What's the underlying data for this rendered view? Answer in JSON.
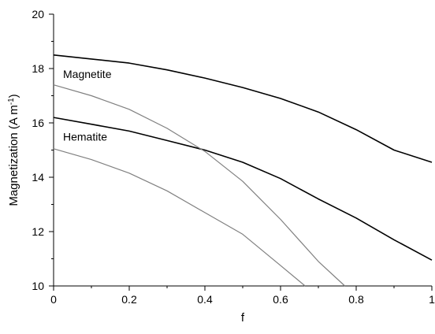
{
  "chart_data": {
    "type": "line",
    "title": "",
    "xlabel": "f",
    "ylabel": "Magnetization (A m",
    "ylabel_superscript": "-1",
    "ylabel_close": ")",
    "xlim": [
      0,
      1
    ],
    "ylim": [
      10,
      20
    ],
    "x_ticks": [
      0,
      0.2,
      0.4,
      0.6,
      0.8,
      1
    ],
    "x_tick_labels": [
      "0",
      "0.2",
      "0.4",
      "0.6",
      "0.8",
      "1"
    ],
    "y_ticks": [
      10,
      12,
      14,
      16,
      18,
      20
    ],
    "y_tick_labels": [
      "10",
      "12",
      "14",
      "16",
      "18",
      "20"
    ],
    "grid": false,
    "legend": "none",
    "annotations": [
      {
        "text": "Magnetite",
        "x": 0.025,
        "y": 17.65
      },
      {
        "text": "Hematite",
        "x": 0.025,
        "y": 15.35
      }
    ],
    "series": [
      {
        "color": "#000000",
        "x": [
          0,
          0.1,
          0.2,
          0.3,
          0.4,
          0.5,
          0.6,
          0.7,
          0.8,
          0.9,
          1.0
        ],
        "y": [
          18.5,
          18.35,
          18.2,
          17.95,
          17.65,
          17.3,
          16.9,
          16.4,
          15.75,
          15.0,
          14.55
        ]
      },
      {
        "color": "#000000",
        "x": [
          0,
          0.1,
          0.2,
          0.3,
          0.4,
          0.5,
          0.6,
          0.7,
          0.8,
          0.9,
          1.0
        ],
        "y": [
          16.2,
          15.95,
          15.7,
          15.35,
          15.0,
          14.55,
          13.95,
          13.2,
          12.5,
          11.7,
          10.95
        ]
      },
      {
        "color": "#808080",
        "x": [
          0,
          0.1,
          0.2,
          0.3,
          0.4,
          0.5,
          0.6,
          0.7,
          0.77
        ],
        "y": [
          17.4,
          17.0,
          16.5,
          15.8,
          14.95,
          13.85,
          12.45,
          10.9,
          10.0
        ]
      },
      {
        "color": "#808080",
        "x": [
          0,
          0.1,
          0.2,
          0.3,
          0.4,
          0.5,
          0.6,
          0.665
        ],
        "y": [
          15.05,
          14.65,
          14.15,
          13.5,
          12.7,
          11.9,
          10.75,
          10.0
        ]
      }
    ]
  }
}
